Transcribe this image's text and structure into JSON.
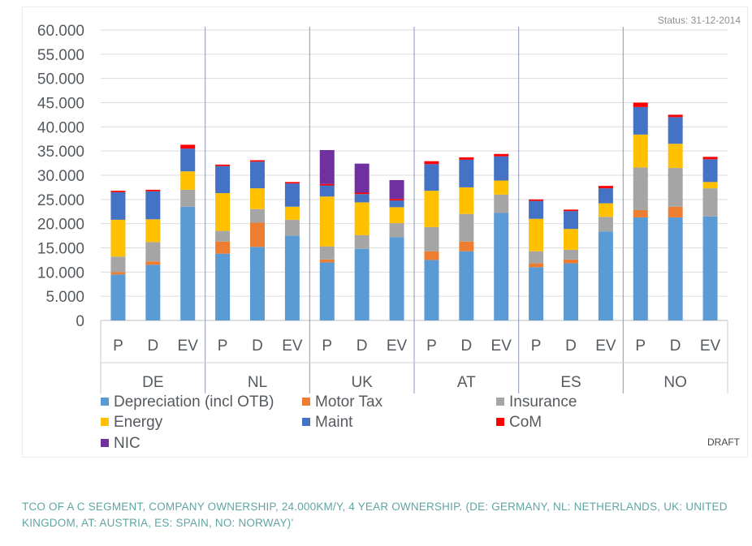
{
  "chart_data": {
    "type": "bar",
    "stacked": true,
    "status": "Status: 31-12-2014",
    "draft": "DRAFT",
    "ylim": [
      0,
      60000
    ],
    "yticks": [
      "0",
      "5.000",
      "10.000",
      "15.000",
      "20.000",
      "25.000",
      "30.000",
      "35.000",
      "40.000",
      "45.000",
      "50.000",
      "55.000",
      "60.000"
    ],
    "groups": [
      {
        "name": "DE",
        "categories": [
          "P",
          "D",
          "EV"
        ]
      },
      {
        "name": "NL",
        "categories": [
          "P",
          "D",
          "EV"
        ]
      },
      {
        "name": "UK",
        "categories": [
          "P",
          "D",
          "EV"
        ]
      },
      {
        "name": "AT",
        "categories": [
          "P",
          "D",
          "EV"
        ]
      },
      {
        "name": "ES",
        "categories": [
          "P",
          "D",
          "EV"
        ]
      },
      {
        "name": "NO",
        "categories": [
          "P",
          "D",
          "EV"
        ]
      }
    ],
    "series": [
      {
        "name": "Depreciation (incl OTB)",
        "color": "#5b9bd5",
        "values": [
          9500,
          11500,
          23500,
          13800,
          15200,
          17500,
          12000,
          14800,
          17200,
          12500,
          14300,
          22200,
          11000,
          11800,
          18400,
          21300,
          21300,
          21500
        ]
      },
      {
        "name": "Motor Tax",
        "color": "#ed7d31",
        "values": [
          500,
          700,
          0,
          2500,
          5000,
          0,
          600,
          0,
          0,
          1800,
          2000,
          0,
          800,
          800,
          0,
          1500,
          2200,
          0
        ]
      },
      {
        "name": "Insurance",
        "color": "#a5a5a5",
        "values": [
          3200,
          4000,
          3500,
          2200,
          2800,
          3300,
          2700,
          2800,
          2900,
          5000,
          5700,
          3800,
          2500,
          2000,
          3000,
          8800,
          8000,
          5800
        ]
      },
      {
        "name": "Energy",
        "color": "#ffc000",
        "values": [
          7600,
          4700,
          3800,
          7800,
          4300,
          2700,
          10300,
          6800,
          3300,
          7500,
          5500,
          2900,
          6700,
          4300,
          2800,
          6800,
          5000,
          1300
        ]
      },
      {
        "name": "Maint",
        "color": "#4472c4",
        "values": [
          5700,
          5800,
          4700,
          5600,
          5500,
          4800,
          2300,
          1700,
          1400,
          5500,
          5700,
          5000,
          3700,
          3700,
          3100,
          5700,
          5500,
          4700
        ]
      },
      {
        "name": "CoM",
        "color": "#ff0000",
        "values": [
          300,
          300,
          800,
          300,
          300,
          300,
          300,
          300,
          300,
          600,
          500,
          500,
          300,
          300,
          500,
          900,
          500,
          500
        ]
      },
      {
        "name": "NIC",
        "color": "#7030a0",
        "values": [
          0,
          0,
          0,
          0,
          0,
          0,
          7000,
          6000,
          3900,
          0,
          0,
          0,
          0,
          0,
          0,
          0,
          0,
          0
        ]
      }
    ],
    "legend_position": "bottom",
    "xlabel": "",
    "ylabel": "",
    "title": ""
  },
  "caption": "TCO OF A C SEGMENT, COMPANY OWNERSHIP, 24.000KM/Y, 4 YEAR OWNERSHIP. (DE: GERMANY, NL: NETHERLANDS, UK: UNITED KINGDOM, AT: AUSTRIA, ES: SPAIN, NO: NORWAY)’"
}
